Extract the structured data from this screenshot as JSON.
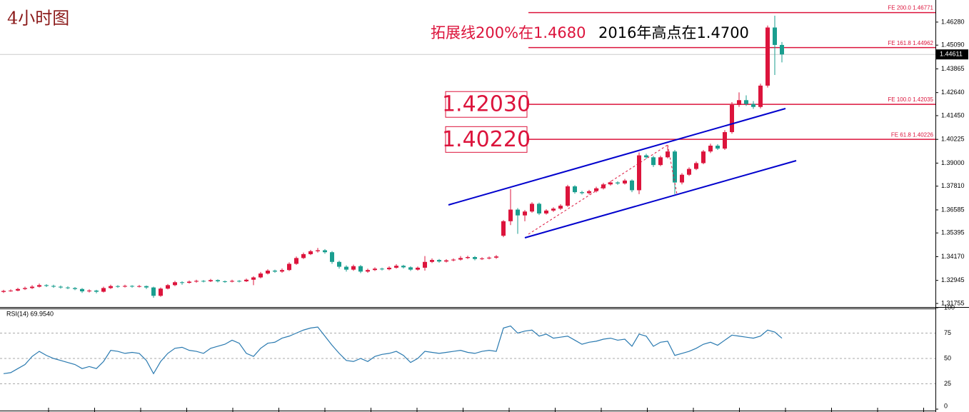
{
  "chart_data": {
    "type": "candlestick",
    "title": "4小时图",
    "title_color": "#8b1a1a",
    "annotations": [
      {
        "text": "拓展线200%在1.4680",
        "color": "#dc143c"
      },
      {
        "text": "2016年高点在1.4700",
        "color": "#000000"
      }
    ],
    "boxed_levels": [
      {
        "value": 1.4203,
        "label": "1.42030"
      },
      {
        "value": 1.4022,
        "label": "1.40220"
      }
    ],
    "fib_levels": [
      {
        "value": 1.46771,
        "label": "FE 200.0  1.46771"
      },
      {
        "value": 1.44962,
        "label": "FE 161.8  1.44962"
      },
      {
        "value": 1.42035,
        "label": "FE 100.0  1.42035"
      },
      {
        "value": 1.40226,
        "label": "FE 61.8  1.40226"
      }
    ],
    "fib_color": "#dc143c",
    "up_color": "#dc143c",
    "down_color": "#1a9e8f",
    "last_price": 1.44611,
    "ylim": [
      1.3157,
      1.4742
    ],
    "yticks": [
      {
        "value": 1.4628,
        "label": "1.46280"
      },
      {
        "value": 1.4509,
        "label": "1.45090"
      },
      1.43865,
      {
        "value": 1.4264,
        "label": "1.42640"
      },
      {
        "value": 1.4145,
        "label": "1.41450"
      },
      1.40225,
      {
        "value": 1.39,
        "label": "1.39000"
      },
      {
        "value": 1.3781,
        "label": "1.37810"
      },
      1.36585,
      1.35395,
      {
        "value": 1.3417,
        "label": "1.34170"
      },
      1.32945,
      1.31755
    ],
    "candles": [
      [
        1.3235,
        1.3246,
        1.323,
        1.324
      ],
      [
        1.324,
        1.3248,
        1.3236,
        1.3242
      ],
      [
        1.3242,
        1.3256,
        1.3238,
        1.325
      ],
      [
        1.325,
        1.3262,
        1.3245,
        1.3255
      ],
      [
        1.3255,
        1.327,
        1.325,
        1.3262
      ],
      [
        1.3262,
        1.3278,
        1.3258,
        1.327
      ],
      [
        1.327,
        1.3275,
        1.326,
        1.3266
      ],
      [
        1.3266,
        1.3272,
        1.3256,
        1.3262
      ],
      [
        1.3262,
        1.3268,
        1.3252,
        1.3258
      ],
      [
        1.3258,
        1.3264,
        1.3249,
        1.3255
      ],
      [
        1.3255,
        1.326,
        1.3244,
        1.325
      ],
      [
        1.325,
        1.3255,
        1.323,
        1.3238
      ],
      [
        1.3238,
        1.3248,
        1.3232,
        1.3242
      ],
      [
        1.3242,
        1.3246,
        1.3228,
        1.3236
      ],
      [
        1.3236,
        1.3262,
        1.3232,
        1.3255
      ],
      [
        1.3255,
        1.3272,
        1.325,
        1.3265
      ],
      [
        1.3265,
        1.327,
        1.3256,
        1.3262
      ],
      [
        1.3262,
        1.3272,
        1.3258,
        1.3266
      ],
      [
        1.3266,
        1.327,
        1.3257,
        1.3263
      ],
      [
        1.3263,
        1.3271,
        1.3258,
        1.3265
      ],
      [
        1.3265,
        1.3268,
        1.325,
        1.3258
      ],
      [
        1.3258,
        1.3262,
        1.3205,
        1.3215
      ],
      [
        1.3215,
        1.3258,
        1.321,
        1.3252
      ],
      [
        1.3252,
        1.3276,
        1.3248,
        1.327
      ],
      [
        1.327,
        1.3292,
        1.3265,
        1.3285
      ],
      [
        1.3285,
        1.329,
        1.3272,
        1.3282
      ],
      [
        1.3282,
        1.3294,
        1.3278,
        1.3288
      ],
      [
        1.3288,
        1.3298,
        1.3283,
        1.3292
      ],
      [
        1.3292,
        1.3296,
        1.3284,
        1.329
      ],
      [
        1.329,
        1.3302,
        1.3286,
        1.3296
      ],
      [
        1.3296,
        1.33,
        1.3284,
        1.329
      ],
      [
        1.329,
        1.3294,
        1.3282,
        1.3288
      ],
      [
        1.3288,
        1.3298,
        1.3284,
        1.3292
      ],
      [
        1.3292,
        1.3296,
        1.3284,
        1.329
      ],
      [
        1.329,
        1.3304,
        1.3286,
        1.3298
      ],
      [
        1.3298,
        1.3316,
        1.327,
        1.331
      ],
      [
        1.331,
        1.3338,
        1.3305,
        1.333
      ],
      [
        1.333,
        1.3352,
        1.3325,
        1.3345
      ],
      [
        1.3345,
        1.335,
        1.3334,
        1.334
      ],
      [
        1.334,
        1.3356,
        1.3334,
        1.3348
      ],
      [
        1.3348,
        1.3388,
        1.3343,
        1.338
      ],
      [
        1.338,
        1.3418,
        1.3375,
        1.341
      ],
      [
        1.341,
        1.3438,
        1.3405,
        1.343
      ],
      [
        1.343,
        1.3452,
        1.3425,
        1.3445
      ],
      [
        1.3445,
        1.3462,
        1.3438,
        1.345
      ],
      [
        1.345,
        1.3456,
        1.3432,
        1.344
      ],
      [
        1.344,
        1.3446,
        1.338,
        1.339
      ],
      [
        1.339,
        1.3396,
        1.3355,
        1.3365
      ],
      [
        1.3365,
        1.3372,
        1.334,
        1.335
      ],
      [
        1.335,
        1.3376,
        1.3344,
        1.3368
      ],
      [
        1.3368,
        1.3374,
        1.3332,
        1.334
      ],
      [
        1.334,
        1.3355,
        1.3334,
        1.3348
      ],
      [
        1.3348,
        1.3362,
        1.3343,
        1.3355
      ],
      [
        1.3355,
        1.336,
        1.3346,
        1.3352
      ],
      [
        1.3352,
        1.3367,
        1.3347,
        1.336
      ],
      [
        1.336,
        1.3378,
        1.3355,
        1.337
      ],
      [
        1.337,
        1.3375,
        1.3356,
        1.3362
      ],
      [
        1.3362,
        1.3367,
        1.3343,
        1.335
      ],
      [
        1.335,
        1.3366,
        1.3345,
        1.336
      ],
      [
        1.336,
        1.342,
        1.3345,
        1.339
      ],
      [
        1.339,
        1.3408,
        1.3384,
        1.34
      ],
      [
        1.34,
        1.3405,
        1.3386,
        1.3392
      ],
      [
        1.3392,
        1.3404,
        1.3387,
        1.3398
      ],
      [
        1.3398,
        1.3408,
        1.3393,
        1.3402
      ],
      [
        1.3402,
        1.342,
        1.3397,
        1.341
      ],
      [
        1.341,
        1.3422,
        1.3405,
        1.3415
      ],
      [
        1.3415,
        1.342,
        1.3398,
        1.3405
      ],
      [
        1.3405,
        1.3414,
        1.34,
        1.3408
      ],
      [
        1.3408,
        1.3418,
        1.3403,
        1.3412
      ],
      [
        1.3412,
        1.3425,
        1.3406,
        1.3418
      ],
      [
        1.3525,
        1.3606,
        1.3518,
        1.36
      ],
      [
        1.36,
        1.3766,
        1.358,
        1.366
      ],
      [
        1.366,
        1.3668,
        1.3535,
        1.363
      ],
      [
        1.363,
        1.3658,
        1.36,
        1.365
      ],
      [
        1.365,
        1.3698,
        1.3644,
        1.369
      ],
      [
        1.369,
        1.3696,
        1.3632,
        1.364
      ],
      [
        1.364,
        1.3662,
        1.3634,
        1.3655
      ],
      [
        1.3655,
        1.3672,
        1.3648,
        1.3665
      ],
      [
        1.3665,
        1.3688,
        1.3658,
        1.368
      ],
      [
        1.368,
        1.3788,
        1.3674,
        1.378
      ],
      [
        1.378,
        1.3786,
        1.3742,
        1.375
      ],
      [
        1.375,
        1.3757,
        1.3738,
        1.3745
      ],
      [
        1.3745,
        1.3762,
        1.3738,
        1.3755
      ],
      [
        1.3755,
        1.3778,
        1.3748,
        1.377
      ],
      [
        1.377,
        1.3798,
        1.3764,
        1.379
      ],
      [
        1.379,
        1.3808,
        1.3784,
        1.38
      ],
      [
        1.38,
        1.3806,
        1.3788,
        1.3795
      ],
      [
        1.3795,
        1.3818,
        1.3789,
        1.381
      ],
      [
        1.381,
        1.3816,
        1.375,
        1.376
      ],
      [
        1.376,
        1.3955,
        1.374,
        1.394
      ],
      [
        1.394,
        1.3948,
        1.3922,
        1.393
      ],
      [
        1.393,
        1.3937,
        1.388,
        1.389
      ],
      [
        1.389,
        1.3938,
        1.3884,
        1.393
      ],
      [
        1.393,
        1.3985,
        1.3924,
        1.396
      ],
      [
        1.396,
        1.3968,
        1.374,
        1.38
      ],
      [
        1.38,
        1.3848,
        1.379,
        1.384
      ],
      [
        1.384,
        1.3878,
        1.3834,
        1.387
      ],
      [
        1.387,
        1.3908,
        1.3864,
        1.39
      ],
      [
        1.39,
        1.3968,
        1.3894,
        1.396
      ],
      [
        1.396,
        1.4,
        1.3952,
        1.399
      ],
      [
        1.399,
        1.3998,
        1.3968,
        1.3975
      ],
      [
        1.3975,
        1.407,
        1.3968,
        1.406
      ],
      [
        1.406,
        1.4215,
        1.4052,
        1.42
      ],
      [
        1.42,
        1.4265,
        1.419,
        1.4225
      ],
      [
        1.4225,
        1.425,
        1.4195,
        1.4205
      ],
      [
        1.4205,
        1.422,
        1.418,
        1.419
      ],
      [
        1.419,
        1.431,
        1.4182,
        1.43
      ],
      [
        1.43,
        1.461,
        1.429,
        1.46
      ],
      [
        1.46,
        1.4661,
        1.4355,
        1.451
      ],
      [
        1.451,
        1.4525,
        1.442,
        1.44611
      ]
    ],
    "rsi": {
      "label": "RSI(14) 69.9540",
      "color": "#2a7ab0",
      "ylim": [
        0,
        100
      ],
      "yticks": [
        100,
        75,
        50,
        25,
        0
      ],
      "values": [
        35,
        36,
        40,
        44,
        52,
        57,
        53,
        50,
        48,
        46,
        44,
        40,
        42,
        40,
        47,
        58,
        57,
        55,
        56,
        55,
        48,
        35,
        47,
        55,
        60,
        61,
        58,
        57,
        55,
        60,
        62,
        64,
        68,
        65,
        55,
        52,
        60,
        65,
        66,
        70,
        72,
        75,
        78,
        80,
        81,
        72,
        63,
        55,
        48,
        47,
        50,
        47,
        52,
        54,
        55,
        57,
        53,
        46,
        50,
        57,
        56,
        55,
        56,
        57,
        58,
        56,
        55,
        57,
        58,
        57,
        80,
        82,
        75,
        77,
        78,
        72,
        74,
        70,
        71,
        72,
        68,
        64,
        66,
        67,
        69,
        70,
        68,
        69,
        62,
        74,
        72,
        62,
        66,
        67,
        53,
        55,
        57,
        60,
        64,
        66,
        63,
        68,
        73,
        72,
        71,
        70,
        72,
        78,
        76,
        69.954
      ]
    }
  }
}
